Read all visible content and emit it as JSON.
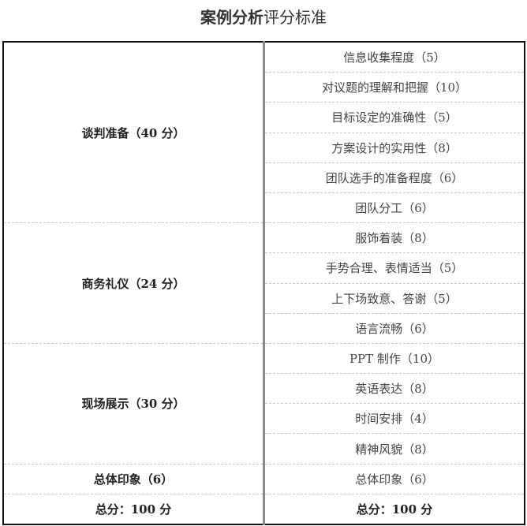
{
  "title": {
    "bold": "案例分析",
    "normal": "评分标准"
  },
  "groups": [
    {
      "label": "谈判准备（40 分）",
      "items": [
        "信息收集程度（5）",
        "对议题的理解和把握（10）",
        "目标设定的准确性（5）",
        "方案设计的实用性（8）",
        "团队选手的准备程度（6）",
        "团队分工（6）"
      ]
    },
    {
      "label": "商务礼仪（24 分）",
      "items": [
        "服饰着装（8）",
        "手势合理、表情适当（5）",
        "上下场致意、答谢（5）",
        "语言流畅（6）"
      ]
    },
    {
      "label": "现场展示（30 分）",
      "items": [
        "PPT 制作（10）",
        "英语表达（8）",
        "时间安排（4）",
        "精神风貌（8）"
      ]
    },
    {
      "label": "总体印象（6）",
      "items": [
        "总体印象（6）"
      ]
    }
  ],
  "total": {
    "left": "总分：100 分",
    "right": "总分：100 分"
  }
}
